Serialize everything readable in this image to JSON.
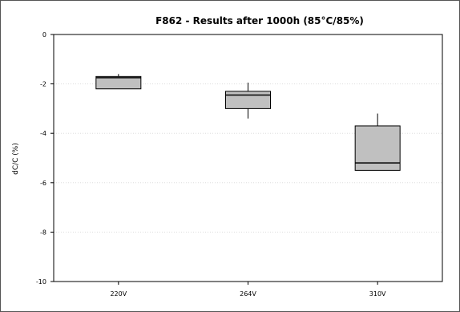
{
  "chart_data": {
    "type": "box",
    "title": "F862 - Results after 1000h (85°C/85%)",
    "xlabel": "",
    "ylabel": "dC/C (%)",
    "ylim": [
      -10,
      0
    ],
    "yticks": [
      "0",
      "-2",
      "-4",
      "-6",
      "-8",
      "-10"
    ],
    "categories": [
      "220V",
      "264V",
      "310V"
    ],
    "boxes": [
      {
        "category": "220V",
        "whisker_low": -2.2,
        "q1": -2.2,
        "median": -1.75,
        "q3": -1.7,
        "whisker_high": -1.6
      },
      {
        "category": "264V",
        "whisker_low": -3.4,
        "q1": -3.0,
        "median": -2.45,
        "q3": -2.3,
        "whisker_high": -1.95
      },
      {
        "category": "310V",
        "whisker_low": -5.5,
        "q1": -5.5,
        "median": -5.2,
        "q3": -3.7,
        "whisker_high": -3.2
      }
    ],
    "grid": true,
    "legend": "none",
    "colors": {
      "frame_border": "#555555",
      "plot_border": "#000000",
      "box_fill": "#c0c0c0",
      "box_stroke": "#000000",
      "grid": "#dddddd"
    }
  }
}
